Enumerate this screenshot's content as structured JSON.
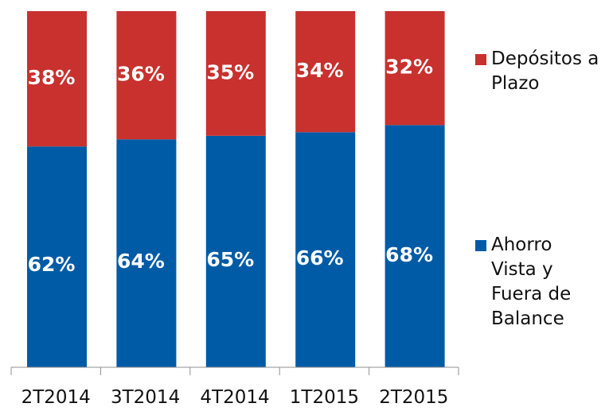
{
  "chart_data": {
    "type": "bar",
    "stacked": true,
    "percent_stacked": true,
    "categories": [
      "2T2014",
      "3T2014",
      "4T2014",
      "1T2015",
      "2T2015"
    ],
    "series": [
      {
        "name": "Ahorro Vista y Fuera de Balance",
        "values": [
          62,
          64,
          65,
          66,
          68
        ],
        "labels": [
          "62%",
          "64%",
          "65%",
          "66%",
          "68%"
        ]
      },
      {
        "name": "Depósitos a Plazo",
        "values": [
          38,
          36,
          35,
          34,
          32
        ],
        "labels": [
          "38%",
          "36%",
          "35%",
          "34%",
          "32%"
        ]
      }
    ],
    "ylim": [
      0,
      100
    ],
    "legend_position": "right",
    "grid": false
  },
  "colors": {
    "bottom_series": "#005BA6",
    "top_series": "#C8312E",
    "axis": "#8f8f8f",
    "bar_label": "#ffffff",
    "category_label": "#111111"
  }
}
